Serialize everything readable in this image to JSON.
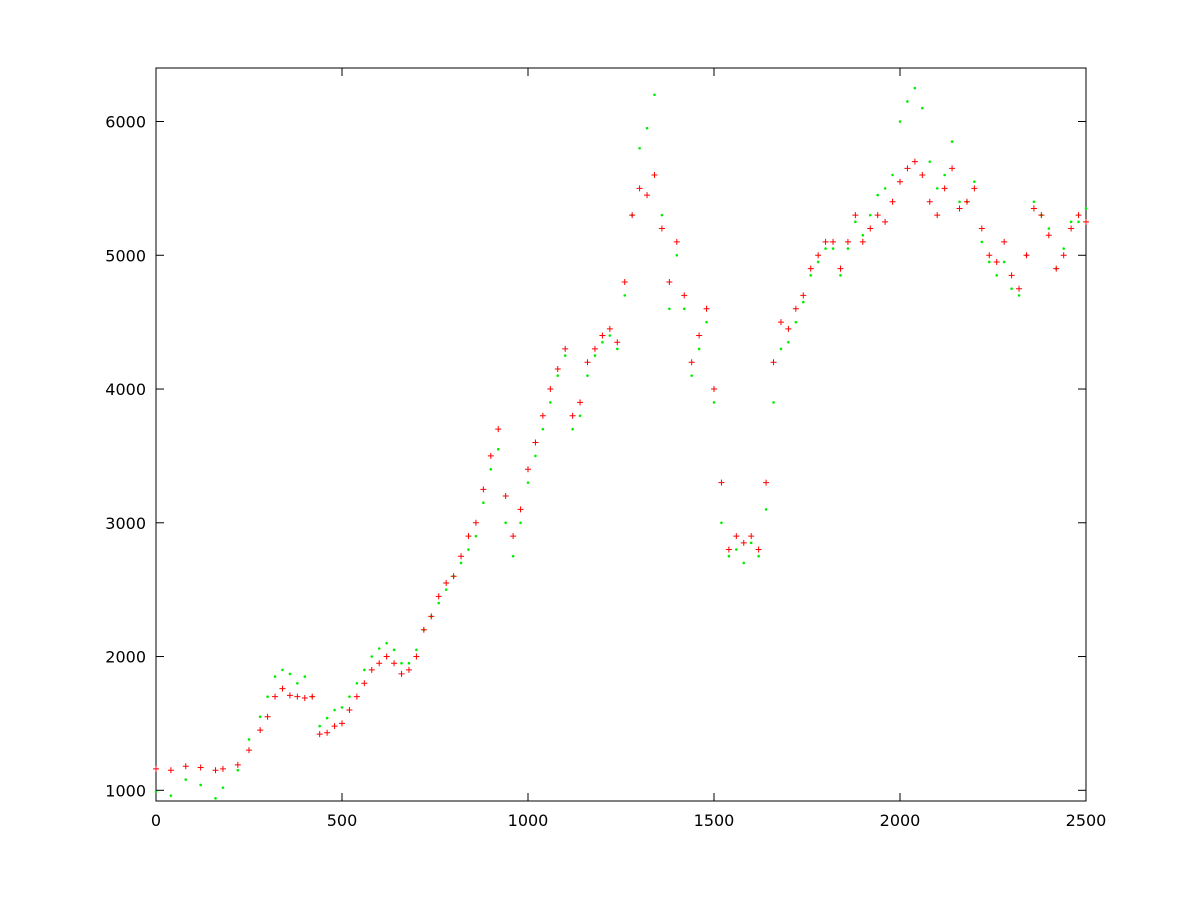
{
  "chart_data": {
    "type": "scatter",
    "title": "",
    "xlabel": "",
    "ylabel": "",
    "xlim": [
      0,
      2500
    ],
    "ylim": [
      920,
      6400
    ],
    "grid": false,
    "legend": "none",
    "x_ticks": [
      {
        "value": 0,
        "label": "0"
      },
      {
        "value": 500,
        "label": "500"
      },
      {
        "value": 1000,
        "label": "1000"
      },
      {
        "value": 1500,
        "label": "1500"
      },
      {
        "value": 2000,
        "label": "2000"
      },
      {
        "value": 2500,
        "label": "2500"
      }
    ],
    "y_ticks": [
      {
        "value": 1000,
        "label": "1000"
      },
      {
        "value": 2000,
        "label": "2000"
      },
      {
        "value": 3000,
        "label": "3000"
      },
      {
        "value": 4000,
        "label": "4000"
      },
      {
        "value": 5000,
        "label": "5000"
      },
      {
        "value": 6000,
        "label": "6000"
      }
    ],
    "series": [
      {
        "marker": "plus",
        "color": "#ff0000",
        "x": [
          0,
          40,
          80,
          120,
          160,
          180,
          220,
          250,
          280,
          300,
          320,
          340,
          360,
          380,
          400,
          420,
          440,
          460,
          480,
          500,
          520,
          540,
          560,
          580,
          600,
          620,
          640,
          660,
          680,
          700,
          720,
          740,
          760,
          780,
          800,
          820,
          840,
          860,
          880,
          900,
          920,
          940,
          960,
          980,
          1000,
          1020,
          1040,
          1060,
          1080,
          1100,
          1120,
          1140,
          1160,
          1180,
          1200,
          1220,
          1240,
          1260,
          1280,
          1300,
          1320,
          1340,
          1360,
          1380,
          1400,
          1420,
          1440,
          1460,
          1480,
          1500,
          1520,
          1540,
          1560,
          1580,
          1600,
          1620,
          1640,
          1660,
          1680,
          1700,
          1720,
          1740,
          1760,
          1780,
          1800,
          1820,
          1840,
          1860,
          1880,
          1900,
          1920,
          1940,
          1960,
          1980,
          2000,
          2020,
          2040,
          2060,
          2080,
          2100,
          2120,
          2140,
          2160,
          2180,
          2200,
          2220,
          2240,
          2260,
          2280,
          2300,
          2320,
          2340,
          2360,
          2380,
          2400,
          2420,
          2440,
          2460,
          2480,
          2500
        ],
        "values": [
          1160,
          1150,
          1180,
          1170,
          1150,
          1160,
          1190,
          1300,
          1450,
          1550,
          1700,
          1760,
          1710,
          1700,
          1690,
          1700,
          1420,
          1430,
          1480,
          1500,
          1600,
          1700,
          1800,
          1900,
          1950,
          2000,
          1950,
          1870,
          1900,
          2000,
          2200,
          2300,
          2450,
          2550,
          2600,
          2750,
          2900,
          3000,
          3250,
          3500,
          3700,
          3200,
          2900,
          3100,
          3400,
          3600,
          3800,
          4000,
          4150,
          4300,
          3800,
          3900,
          4200,
          4300,
          4400,
          4450,
          4350,
          4800,
          5300,
          5500,
          5450,
          5600,
          5200,
          4800,
          5100,
          4700,
          4200,
          4400,
          4600,
          4000,
          3300,
          2800,
          2900,
          2850,
          2900,
          2800,
          3300,
          4200,
          4500,
          4450,
          4600,
          4700,
          4900,
          5000,
          5100,
          5100,
          4900,
          5100,
          5300,
          5100,
          5200,
          5300,
          5250,
          5400,
          5550,
          5650,
          5700,
          5600,
          5400,
          5300,
          5500,
          5650,
          5350,
          5400,
          5500,
          5200,
          5000,
          4950,
          5100,
          4850,
          4750,
          5000,
          5350,
          5300,
          5150,
          4900,
          5000,
          5200,
          5300,
          5250
        ]
      },
      {
        "marker": "dot",
        "color": "#00ee00",
        "x": [
          0,
          40,
          80,
          120,
          160,
          180,
          220,
          250,
          280,
          300,
          320,
          340,
          360,
          380,
          400,
          420,
          440,
          460,
          480,
          500,
          520,
          540,
          560,
          580,
          600,
          620,
          640,
          660,
          680,
          700,
          720,
          740,
          760,
          780,
          800,
          820,
          840,
          860,
          880,
          900,
          920,
          940,
          960,
          980,
          1000,
          1020,
          1040,
          1060,
          1080,
          1100,
          1120,
          1140,
          1160,
          1180,
          1200,
          1220,
          1240,
          1260,
          1280,
          1300,
          1320,
          1340,
          1360,
          1380,
          1400,
          1420,
          1440,
          1460,
          1480,
          1500,
          1520,
          1540,
          1560,
          1580,
          1600,
          1620,
          1640,
          1660,
          1680,
          1700,
          1720,
          1740,
          1760,
          1780,
          1800,
          1820,
          1840,
          1860,
          1880,
          1900,
          1920,
          1940,
          1960,
          1980,
          2000,
          2020,
          2040,
          2060,
          2080,
          2100,
          2120,
          2140,
          2160,
          2180,
          2200,
          2220,
          2240,
          2260,
          2280,
          2300,
          2320,
          2340,
          2360,
          2380,
          2400,
          2420,
          2440,
          2460,
          2480,
          2500
        ],
        "values": [
          990,
          960,
          1080,
          1040,
          940,
          1020,
          1150,
          1380,
          1550,
          1700,
          1850,
          1900,
          1870,
          1800,
          1850,
          1700,
          1480,
          1540,
          1600,
          1620,
          1700,
          1800,
          1900,
          2000,
          2060,
          2100,
          2050,
          1950,
          1950,
          2050,
          2200,
          2300,
          2400,
          2500,
          2600,
          2700,
          2800,
          2900,
          3150,
          3400,
          3550,
          3000,
          2750,
          3000,
          3300,
          3500,
          3700,
          3900,
          4100,
          4250,
          3700,
          3800,
          4100,
          4250,
          4350,
          4400,
          4300,
          4700,
          5300,
          5800,
          5950,
          6200,
          5300,
          4600,
          5000,
          4600,
          4100,
          4300,
          4500,
          3900,
          3000,
          2750,
          2800,
          2700,
          2850,
          2750,
          3100,
          3900,
          4300,
          4350,
          4500,
          4650,
          4850,
          4950,
          5050,
          5050,
          4850,
          5050,
          5250,
          5150,
          5300,
          5450,
          5500,
          5600,
          6000,
          6150,
          6250,
          6100,
          5700,
          5500,
          5600,
          5850,
          5400,
          5400,
          5550,
          5100,
          4950,
          4850,
          4950,
          4750,
          4700,
          5000,
          5400,
          5300,
          5200,
          4900,
          5050,
          5250,
          5250,
          5350
        ]
      }
    ]
  }
}
